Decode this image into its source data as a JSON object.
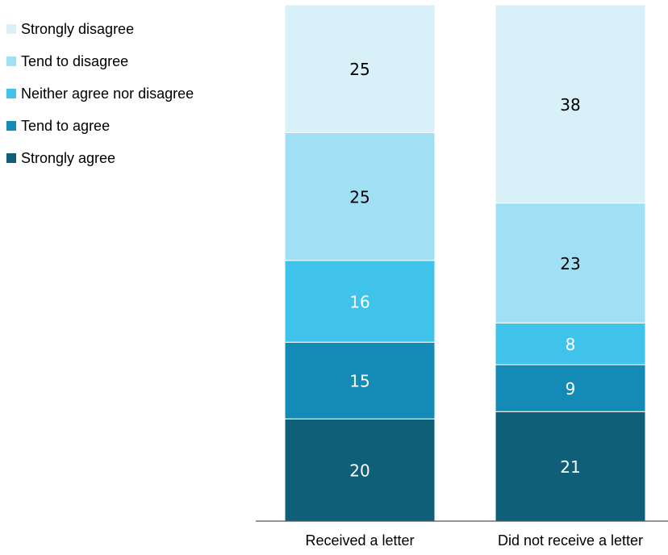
{
  "chart_data": {
    "type": "bar",
    "stacked": true,
    "categories": [
      "Received a letter",
      "Did not receive a letter"
    ],
    "series": [
      {
        "name": "Strongly agree",
        "color": "#0f5f78",
        "label_color": "#ffffff",
        "values": [
          20,
          21
        ]
      },
      {
        "name": "Tend to agree",
        "color": "#138bb6",
        "label_color": "#ffffff",
        "values": [
          15,
          9
        ]
      },
      {
        "name": "Neither agree nor disagree",
        "color": "#40c3ea",
        "label_color": "#ffffff",
        "values": [
          16,
          8
        ]
      },
      {
        "name": "Tend to disagree",
        "color": "#a1e0f4",
        "label_color": "#000000",
        "values": [
          25,
          23
        ]
      },
      {
        "name": "Strongly disagree",
        "color": "#d8f1f9",
        "label_color": "#000000",
        "values": [
          25,
          38
        ]
      }
    ],
    "ylim": [
      0,
      100
    ],
    "grid": false,
    "legend_position": "top-left"
  }
}
